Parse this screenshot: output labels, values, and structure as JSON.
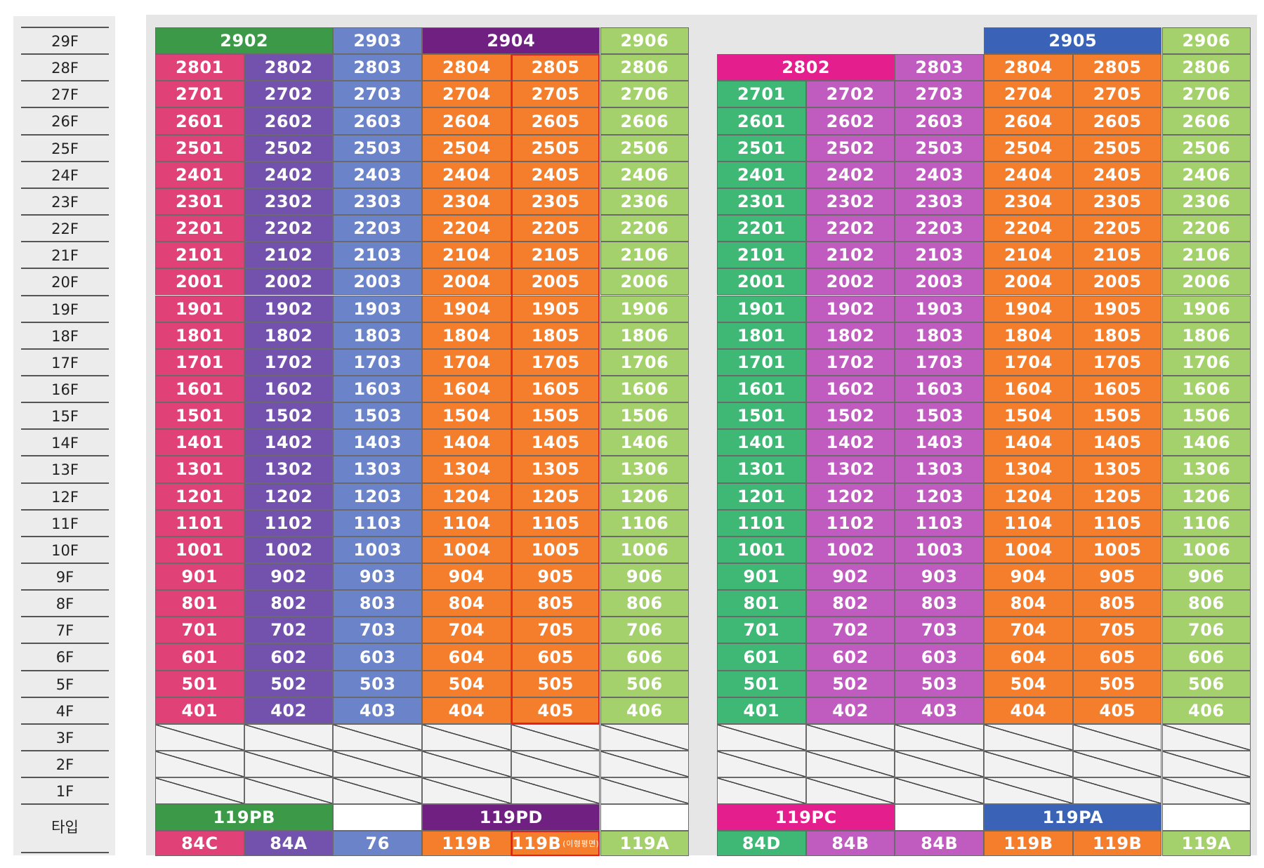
{
  "colors": {
    "pink": "#e04277",
    "purple": "#7352ad",
    "blue": "#6a83c9",
    "orange": "#f47e2c",
    "lime": "#a4d16b",
    "green": "#3fb876",
    "magenta": "#c05cc0",
    "header_green": "#3b9947",
    "header_purple": "#6f2080",
    "header_magenta": "#dc0c8d",
    "header_blue": "#3a62b6",
    "hot_pink": "#e41e8c",
    "white": "#ffffff",
    "highlight_outline": "#e0201c"
  },
  "floors": [
    "29F",
    "28F",
    "27F",
    "26F",
    "25F",
    "24F",
    "23F",
    "22F",
    "21F",
    "20F",
    "19F",
    "18F",
    "17F",
    "16F",
    "15F",
    "14F",
    "13F",
    "12F",
    "11F",
    "10F",
    "9F",
    "8F",
    "7F",
    "6F",
    "5F",
    "4F",
    "3F",
    "2F",
    "1F"
  ],
  "type_label": "타입",
  "buildings": [
    {
      "id": "left",
      "top_row": [
        {
          "text": "2902",
          "span": 2,
          "color": "header_green"
        },
        {
          "text": "2903",
          "span": 1,
          "color": "blue"
        },
        {
          "text": "2904",
          "span": 2,
          "color": "header_purple"
        },
        {
          "text": "2906",
          "span": 1,
          "color": "lime"
        }
      ],
      "column_colors": [
        "pink",
        "purple",
        "blue",
        "orange",
        "orange",
        "lime"
      ],
      "unit_suffixes": [
        "01",
        "02",
        "03",
        "04",
        "05",
        "06"
      ],
      "first_floor_row": 28,
      "highlight_column": 4,
      "type_headers": [
        {
          "text": "119PB",
          "span": 2,
          "color": "header_green"
        },
        {
          "text": "",
          "span": 1,
          "color": "white"
        },
        {
          "text": "119PD",
          "span": 2,
          "color": "header_purple"
        },
        {
          "text": "",
          "span": 1,
          "color": "white"
        }
      ],
      "types": [
        {
          "text": "84C",
          "color": "pink"
        },
        {
          "text": "84A",
          "color": "purple"
        },
        {
          "text": "76",
          "color": "blue"
        },
        {
          "text": "119B",
          "color": "orange"
        },
        {
          "text": "119B",
          "note": "(이형평면)",
          "color": "orange"
        },
        {
          "text": "119A",
          "color": "lime"
        }
      ]
    },
    {
      "id": "right",
      "top_row": [
        {
          "text": "",
          "span": 3,
          "color": "none"
        },
        {
          "text": "2905",
          "span": 2,
          "color": "header_blue"
        },
        {
          "text": "2906",
          "span": 1,
          "color": "lime"
        }
      ],
      "floor28_row": [
        {
          "text": "2802",
          "span": 2,
          "color": "hot_pink"
        },
        {
          "text": "2803",
          "span": 1,
          "color": "magenta"
        },
        {
          "text": "2804",
          "span": 1,
          "color": "orange"
        },
        {
          "text": "2805",
          "span": 1,
          "color": "orange"
        },
        {
          "text": "2806",
          "span": 1,
          "color": "lime"
        }
      ],
      "column_colors": [
        "green",
        "magenta",
        "magenta",
        "orange",
        "orange",
        "lime"
      ],
      "unit_suffixes": [
        "01",
        "02",
        "03",
        "04",
        "05",
        "06"
      ],
      "first_floor_row": 27,
      "type_headers": [
        {
          "text": "119PC",
          "span": 2,
          "color": "hot_pink"
        },
        {
          "text": "",
          "span": 1,
          "color": "white"
        },
        {
          "text": "119PA",
          "span": 2,
          "color": "header_blue"
        },
        {
          "text": "",
          "span": 1,
          "color": "white"
        }
      ],
      "types": [
        {
          "text": "84D",
          "color": "green"
        },
        {
          "text": "84B",
          "color": "magenta"
        },
        {
          "text": "84B",
          "color": "magenta"
        },
        {
          "text": "119B",
          "color": "orange"
        },
        {
          "text": "119B",
          "color": "orange"
        },
        {
          "text": "119A",
          "color": "lime"
        }
      ]
    }
  ]
}
